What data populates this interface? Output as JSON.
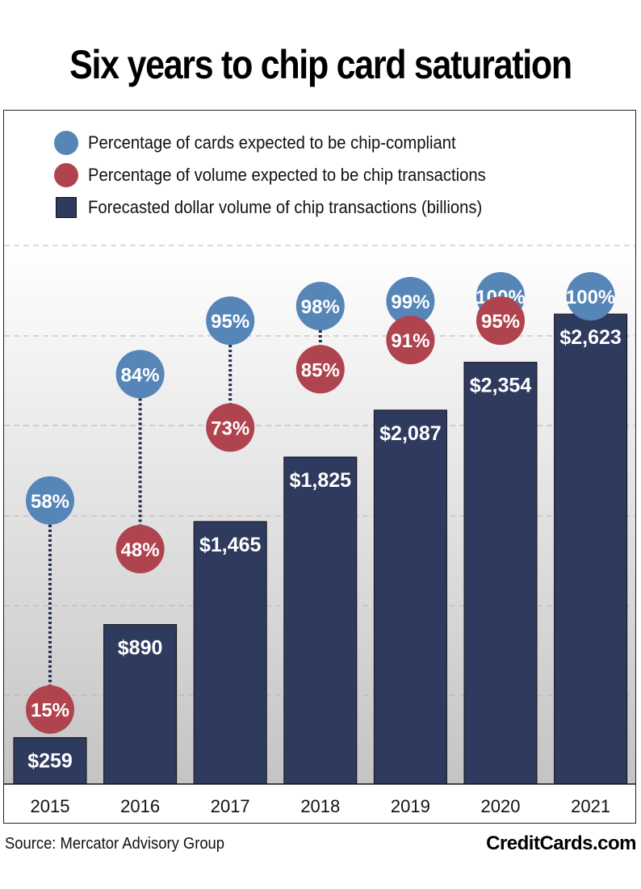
{
  "title": "Six years to chip card saturation",
  "source": "Source: Mercator Advisory Group",
  "brand": "CreditCards.com",
  "colors": {
    "cards_circle": "#5685b8",
    "volume_circle": "#b0444e",
    "bar": "#2e3a5e",
    "connector": "#1f2a4d",
    "gridline": "#b5b5b5"
  },
  "legend": [
    {
      "label": "Percentage of cards expected to be chip-compliant",
      "shape": "circle",
      "color": "#5685b8"
    },
    {
      "label": "Percentage of volume expected to be chip transactions",
      "shape": "circle",
      "color": "#b0444e"
    },
    {
      "label": "Forecasted dollar volume of chip transactions (billions)",
      "shape": "square",
      "color": "#2e3a5e"
    }
  ],
  "chart_data": {
    "type": "bar",
    "title": "Six years to chip card saturation",
    "xlabel": "",
    "ylabel": "",
    "categories": [
      "2015",
      "2016",
      "2017",
      "2018",
      "2019",
      "2020",
      "2021"
    ],
    "grid": true,
    "legend_position": "top-left",
    "series": [
      {
        "name": "Forecasted dollar volume of chip transactions (billions)",
        "type": "bar",
        "values": [
          259,
          890,
          1465,
          1825,
          2087,
          2354,
          2623
        ],
        "labels": [
          "$259",
          "$890",
          "$1,465",
          "$1,825",
          "$2,087",
          "$2,354",
          "$2,623"
        ]
      },
      {
        "name": "Percentage of cards expected to be chip-compliant",
        "type": "dot",
        "unit": "%",
        "values": [
          58,
          84,
          95,
          98,
          99,
          100,
          100
        ],
        "labels": [
          "58%",
          "84%",
          "95%",
          "98%",
          "99%",
          "100%",
          "100%"
        ]
      },
      {
        "name": "Percentage of volume expected to be chip transactions",
        "type": "dot",
        "unit": "%",
        "values": [
          15,
          48,
          73,
          85,
          91,
          95,
          null
        ],
        "labels": [
          "15%",
          "48%",
          "73%",
          "85%",
          "91%",
          "95%",
          ""
        ]
      }
    ]
  }
}
